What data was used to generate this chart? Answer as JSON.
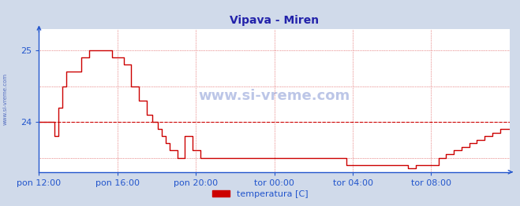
{
  "title": "Vipava - Miren",
  "title_color": "#2222aa",
  "bg_color": "#d0daea",
  "plot_bg_color": "#ffffff",
  "line_color": "#cc0000",
  "axis_color": "#2255cc",
  "grid_color": "#cc0000",
  "watermark_color": "#1133aa",
  "xlabel_color": "#2255cc",
  "legend_label": "temperatura [C]",
  "legend_color": "#cc0000",
  "ylim": [
    23.3,
    25.3
  ],
  "y_ticks": [
    24,
    25
  ],
  "watermark": "www.si-vreme.com",
  "sidewatermark": "www.si-vreme.com",
  "avg_line_y": 24.0,
  "x_labels": [
    "pon 12:00",
    "pon 16:00",
    "pon 20:00",
    "tor 00:00",
    "tor 04:00",
    "tor 08:00"
  ],
  "temp_data": [
    24.0,
    24.0,
    24.0,
    24.0,
    24.0,
    24.0,
    24.0,
    24.0,
    23.8,
    23.8,
    24.2,
    24.2,
    24.5,
    24.5,
    24.7,
    24.7,
    24.7,
    24.7,
    24.7,
    24.7,
    24.7,
    24.7,
    24.9,
    24.9,
    24.9,
    24.9,
    25.0,
    25.0,
    25.0,
    25.0,
    25.0,
    25.0,
    25.0,
    25.0,
    25.0,
    25.0,
    25.0,
    25.0,
    24.9,
    24.9,
    24.9,
    24.9,
    24.9,
    24.9,
    24.8,
    24.8,
    24.8,
    24.8,
    24.5,
    24.5,
    24.5,
    24.5,
    24.3,
    24.3,
    24.3,
    24.3,
    24.1,
    24.1,
    24.1,
    24.0,
    24.0,
    24.0,
    23.9,
    23.9,
    23.8,
    23.8,
    23.7,
    23.7,
    23.6,
    23.6,
    23.6,
    23.6,
    23.5,
    23.5,
    23.5,
    23.5,
    23.8,
    23.8,
    23.8,
    23.8,
    23.6,
    23.6,
    23.6,
    23.6,
    23.5,
    23.5,
    23.5,
    23.5,
    23.5,
    23.5,
    23.5,
    23.5,
    23.5,
    23.5,
    23.5,
    23.5,
    23.5,
    23.5,
    23.5,
    23.5,
    23.5,
    23.5,
    23.5,
    23.5,
    23.5,
    23.5,
    23.5,
    23.5,
    23.5,
    23.5,
    23.5,
    23.5,
    23.5,
    23.5,
    23.5,
    23.5,
    23.5,
    23.5,
    23.5,
    23.5,
    23.5,
    23.5,
    23.5,
    23.5,
    23.5,
    23.5,
    23.5,
    23.5,
    23.5,
    23.5,
    23.5,
    23.5,
    23.5,
    23.5,
    23.5,
    23.5,
    23.5,
    23.5,
    23.5,
    23.5,
    23.5,
    23.5,
    23.5,
    23.5,
    23.5,
    23.5,
    23.5,
    23.5,
    23.5,
    23.5,
    23.5,
    23.5,
    23.5,
    23.5,
    23.5,
    23.5,
    23.5,
    23.5,
    23.5,
    23.5,
    23.4,
    23.4,
    23.4,
    23.4,
    23.4,
    23.4,
    23.4,
    23.4,
    23.4,
    23.4,
    23.4,
    23.4,
    23.4,
    23.4,
    23.4,
    23.4,
    23.4,
    23.4,
    23.4,
    23.4,
    23.4,
    23.4,
    23.4,
    23.4,
    23.4,
    23.4,
    23.4,
    23.4,
    23.4,
    23.4,
    23.4,
    23.4,
    23.35,
    23.35,
    23.35,
    23.35,
    23.4,
    23.4,
    23.4,
    23.4,
    23.4,
    23.4,
    23.4,
    23.4,
    23.4,
    23.4,
    23.4,
    23.4,
    23.5,
    23.5,
    23.5,
    23.5,
    23.55,
    23.55,
    23.55,
    23.55,
    23.6,
    23.6,
    23.6,
    23.6,
    23.65,
    23.65,
    23.65,
    23.65,
    23.7,
    23.7,
    23.7,
    23.7,
    23.75,
    23.75,
    23.75,
    23.75,
    23.8,
    23.8,
    23.8,
    23.8,
    23.85,
    23.85,
    23.85,
    23.85,
    23.9,
    23.9,
    23.9,
    23.9,
    23.9,
    23.9
  ]
}
